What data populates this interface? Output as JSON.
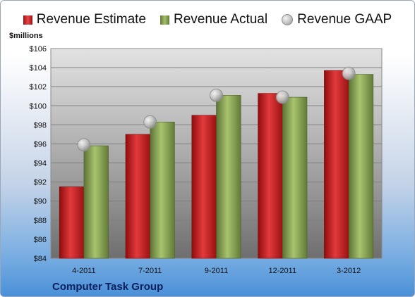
{
  "legend": {
    "estimate": "Revenue Estimate",
    "actual": "Revenue Actual",
    "gaap": "Revenue GAAP"
  },
  "company": "Computer Task Group",
  "colors": {
    "estimate": "#c8191c",
    "actual": "#8ca552",
    "gaap": "#c0c0c0"
  },
  "chart_data": {
    "type": "bar",
    "title": "",
    "xlabel": "",
    "ylabel": "$millions",
    "ylim": [
      84,
      106
    ],
    "yticks": [
      84,
      86,
      88,
      90,
      92,
      94,
      96,
      98,
      100,
      102,
      104,
      106
    ],
    "ytick_labels": [
      "$84",
      "$86",
      "$88",
      "$90",
      "$92",
      "$94",
      "$96",
      "$98",
      "$100",
      "$102",
      "$104",
      "$106"
    ],
    "categories": [
      "4-2011",
      "7-2011",
      "9-2011",
      "12-2011",
      "3-2012"
    ],
    "grid": true,
    "legend_position": "top",
    "series": [
      {
        "name": "Revenue Estimate",
        "kind": "bar",
        "values": [
          91.5,
          97.0,
          99.0,
          101.3,
          103.7
        ]
      },
      {
        "name": "Revenue Actual",
        "kind": "bar",
        "values": [
          95.8,
          98.3,
          101.1,
          100.9,
          103.3
        ]
      },
      {
        "name": "Revenue GAAP",
        "kind": "marker",
        "values": [
          95.9,
          98.3,
          101.1,
          100.9,
          103.4
        ]
      }
    ]
  }
}
